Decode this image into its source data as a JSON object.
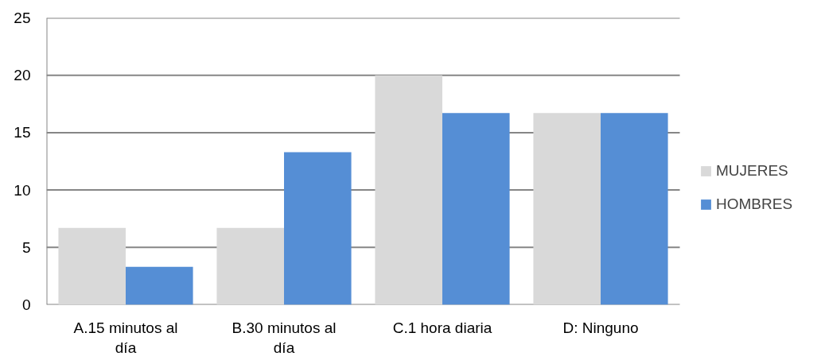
{
  "chart_data": {
    "type": "bar",
    "categories": [
      "A.15 minutos al día",
      "B.30 minutos al día",
      "C.1 hora diaria",
      "D: Ninguno"
    ],
    "series": [
      {
        "name": "MUJERES",
        "color": "#d9d9d9",
        "values": [
          6.7,
          6.7,
          20,
          16.7
        ]
      },
      {
        "name": "HOMBRES",
        "color": "#558ed5",
        "values": [
          3.3,
          13.3,
          16.7,
          16.7
        ]
      }
    ],
    "ylim": [
      0,
      25
    ],
    "yticks": [
      0,
      5,
      10,
      15,
      20,
      25
    ],
    "grid": "y",
    "legend": "right"
  }
}
